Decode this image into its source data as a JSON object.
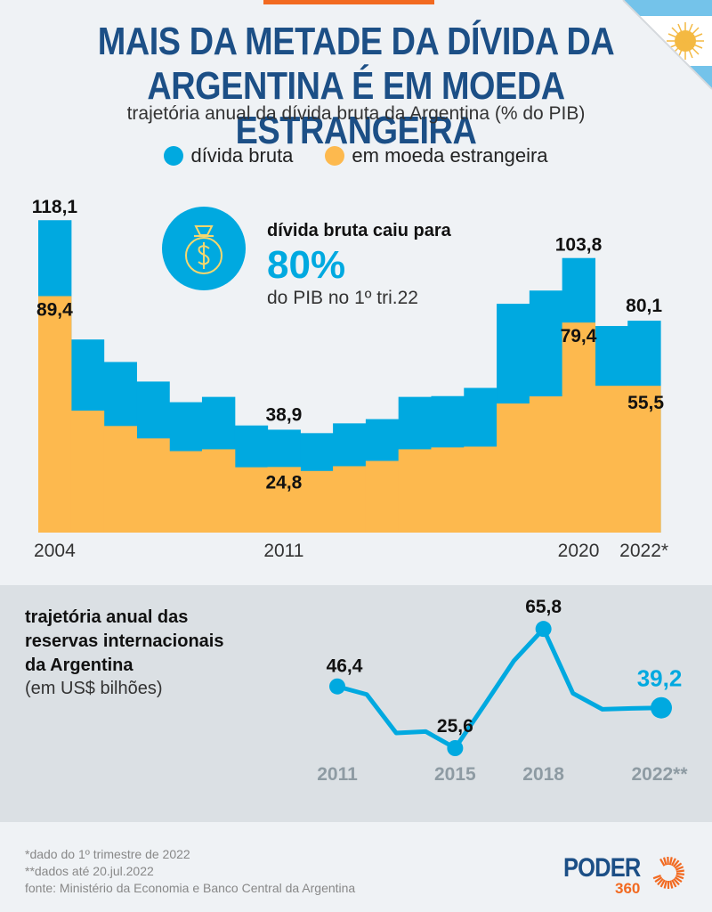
{
  "header": {
    "title_line1": "MAIS DA METADE DA DÍVIDA DA",
    "title_line2": "ARGENTINA É EM MOEDA ESTRANGEIRA",
    "subtitle": "trajetória anual da dívida bruta da Argentina (% do PIB)"
  },
  "legend": [
    {
      "label": "dívida bruta",
      "color": "#00a9e0"
    },
    {
      "label": "em moeda estrangeira",
      "color": "#fdb94e"
    }
  ],
  "callout": {
    "icon": "money-bag-icon",
    "line1": "dívida bruta caiu para",
    "value": "80%",
    "line3": "do PIB no 1º tri.22"
  },
  "reserves_panel": {
    "title_line1": "trajetória anual das",
    "title_line2": "reservas internacionais",
    "title_line3": "da Argentina",
    "units": "(em US$ bilhões)"
  },
  "footer": {
    "note1": "*dado do 1º trimestre de 2022",
    "note2": "**dados até 20.jul.2022",
    "source": "fonte: Ministério da Economia e Banco Central da Argentina"
  },
  "logo": {
    "name": "PODER",
    "number": "360"
  },
  "colors": {
    "blue": "#00a9e0",
    "orange": "#fdb94e",
    "title": "#1c4f86",
    "accent": "#f26a21"
  },
  "chart_data": [
    {
      "type": "area",
      "title": "trajetória anual da dívida bruta da Argentina (% do PIB)",
      "xlabel": "",
      "ylabel": "% do PIB",
      "ylim": [
        0,
        120
      ],
      "grid": false,
      "legend": "top-center",
      "categories": [
        "2004",
        "2005",
        "2006",
        "2007",
        "2008",
        "2009",
        "2010",
        "2011",
        "2012",
        "2013",
        "2014",
        "2015",
        "2016",
        "2017",
        "2018",
        "2019",
        "2020",
        "2021",
        "2022*"
      ],
      "tick_labels": [
        {
          "index": 0,
          "label": "2004"
        },
        {
          "index": 7,
          "label": "2011"
        },
        {
          "index": 16,
          "label": "2020"
        },
        {
          "index": 18,
          "label": "2022*"
        }
      ],
      "series": [
        {
          "name": "dívida bruta",
          "color": "#00a9e0",
          "values": [
            118.1,
            73.0,
            64.5,
            57.1,
            49.3,
            51.3,
            40.5,
            38.9,
            37.6,
            41.3,
            42.9,
            51.3,
            51.6,
            54.7,
            86.5,
            91.5,
            103.8,
            78.1,
            80.1
          ]
        },
        {
          "name": "em moeda estrangeira",
          "color": "#fdb94e",
          "values": [
            89.4,
            46.1,
            40.3,
            35.6,
            30.8,
            31.5,
            24.7,
            24.8,
            23.3,
            25.1,
            27.1,
            31.5,
            32.2,
            32.5,
            48.8,
            51.5,
            79.4,
            55.5,
            55.5
          ]
        }
      ],
      "data_labels": [
        {
          "series": 0,
          "index": 0,
          "text": "118,1"
        },
        {
          "series": 1,
          "index": 0,
          "text": "89,4"
        },
        {
          "series": 0,
          "index": 7,
          "text": "38,9"
        },
        {
          "series": 1,
          "index": 7,
          "text": "24,8"
        },
        {
          "series": 0,
          "index": 16,
          "text": "103,8"
        },
        {
          "series": 1,
          "index": 16,
          "text": "79,4"
        },
        {
          "series": 0,
          "index": 18,
          "text": "80,1"
        },
        {
          "series": 1,
          "index": 18,
          "text": "55,5"
        }
      ]
    },
    {
      "type": "line",
      "title": "trajetória anual das reservas internacionais da Argentina (em US$ bilhões)",
      "xlabel": "",
      "ylabel": "US$ bilhões",
      "ylim": [
        20,
        70
      ],
      "grid": false,
      "x": [
        "2011",
        "2012",
        "2013",
        "2014",
        "2015",
        "2016",
        "2017",
        "2018",
        "2019",
        "2020",
        "2021",
        "2022**"
      ],
      "tick_labels": [
        {
          "index": 0,
          "label": "2011"
        },
        {
          "index": 4,
          "label": "2015"
        },
        {
          "index": 7,
          "label": "2018"
        },
        {
          "index": 11,
          "label": "2022**"
        }
      ],
      "series": [
        {
          "name": "reservas internacionais",
          "color": "#00a9e0",
          "values": [
            46.4,
            43.7,
            30.7,
            31.2,
            25.6,
            40.2,
            55.1,
            65.8,
            44.1,
            38.7,
            39.0,
            39.2
          ]
        }
      ],
      "markers": [
        0,
        4,
        7,
        11
      ],
      "data_labels": [
        {
          "index": 0,
          "text": "46,4",
          "color": "#111111"
        },
        {
          "index": 4,
          "text": "25,6",
          "color": "#111111"
        },
        {
          "index": 7,
          "text": "65,8",
          "color": "#111111"
        },
        {
          "index": 11,
          "text": "39,2",
          "color": "#00a9e0"
        }
      ]
    }
  ]
}
